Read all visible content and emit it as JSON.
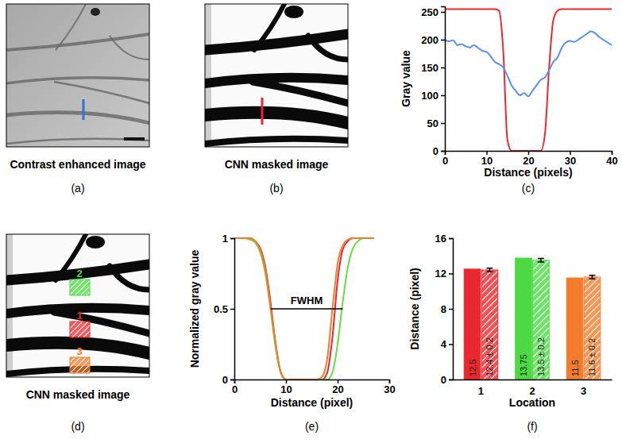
{
  "chart_data": [
    {
      "type": "image",
      "title": "Contrast enhanced image",
      "caption": "(a)",
      "color": "#3b6fd8"
    },
    {
      "type": "image",
      "title": "CNN masked image",
      "caption": "(b)",
      "color": "#e8282c"
    },
    {
      "type": "line",
      "caption": "(c)",
      "x_label": "Distance (pixels)",
      "y_label": "Gray value",
      "x": [
        0,
        1,
        2,
        3,
        4,
        5,
        6,
        7,
        8,
        9,
        10,
        11,
        12,
        13,
        14,
        15,
        16,
        17,
        18,
        19,
        20,
        21,
        22,
        23,
        24,
        25,
        26,
        27,
        28,
        29,
        30,
        31,
        32,
        33,
        34,
        35,
        36,
        37,
        38,
        39,
        40
      ],
      "series": [
        {
          "color": "#f0282d",
          "values": [
            255,
            255,
            255,
            255,
            255,
            255,
            255,
            255,
            255,
            255,
            255,
            255,
            255,
            252,
            180,
            20,
            0,
            0,
            0,
            0,
            0,
            0,
            0,
            0,
            30,
            150,
            235,
            252,
            255,
            255,
            255,
            255,
            255,
            255,
            255,
            255,
            255,
            255,
            255,
            255,
            255
          ]
        },
        {
          "color": "#5b8ff0",
          "values": [
            200,
            197,
            199,
            190,
            192,
            188,
            186,
            190,
            185,
            180,
            178,
            170,
            160,
            156,
            150,
            135,
            118,
            108,
            100,
            104,
            98,
            108,
            118,
            128,
            132,
            145,
            160,
            168,
            185,
            195,
            198,
            196,
            200,
            205,
            210,
            215,
            212,
            205,
            200,
            195,
            190
          ]
        }
      ],
      "xlim": [
        0,
        40
      ],
      "xticks": [
        0,
        10,
        20,
        30,
        40
      ],
      "ylim": [
        0,
        260
      ],
      "yticks": [
        0,
        50,
        100,
        150,
        200,
        250
      ]
    },
    {
      "type": "image",
      "title": "CNN masked image",
      "caption": "(d)",
      "regions": [
        {
          "label": "2",
          "color": "#4cd944"
        },
        {
          "label": "1",
          "color": "#e8282c"
        },
        {
          "label": "3",
          "color": "#f07c2c"
        }
      ]
    },
    {
      "type": "line",
      "caption": "(e)",
      "x_label": "Distance (pixel)",
      "y_label": "Normalized gray value",
      "x": [
        0,
        1,
        2,
        3,
        4,
        5,
        6,
        7,
        8,
        9,
        10,
        11,
        12,
        13,
        14,
        15,
        16,
        17,
        18,
        19,
        20,
        21,
        22,
        23,
        24,
        25,
        26,
        27
      ],
      "series": [
        {
          "color": "#e8282c",
          "values": [
            1,
            1,
            1,
            1,
            0.98,
            0.93,
            0.8,
            0.55,
            0.25,
            0.05,
            0,
            0,
            0,
            0,
            0,
            0,
            0,
            0,
            0.05,
            0.3,
            0.7,
            0.92,
            0.98,
            1,
            1,
            1,
            1,
            1
          ]
        },
        {
          "color": "#66dd44",
          "values": [
            1,
            1,
            1,
            0.99,
            0.97,
            0.9,
            0.75,
            0.5,
            0.22,
            0.05,
            0,
            0,
            0,
            0,
            0,
            0,
            0,
            0,
            0,
            0.05,
            0.25,
            0.55,
            0.8,
            0.93,
            0.98,
            1,
            1,
            1
          ]
        },
        {
          "color": "#f07c2c",
          "values": [
            1,
            1,
            1,
            1,
            0.98,
            0.92,
            0.78,
            0.52,
            0.25,
            0.05,
            0,
            0,
            0,
            0,
            0,
            0,
            0,
            0.02,
            0.15,
            0.5,
            0.82,
            0.95,
            0.99,
            1,
            1,
            1,
            1,
            1
          ]
        }
      ],
      "annotations": [
        {
          "text": "FWHM",
          "x": [
            7,
            21
          ],
          "y": 0.5
        }
      ],
      "xlim": [
        0,
        30
      ],
      "xticks": [
        0,
        10,
        20,
        30
      ],
      "ylim": [
        0,
        1
      ],
      "yticks": [
        0,
        0.5,
        1
      ]
    },
    {
      "type": "bar",
      "caption": "(f)",
      "x_label": "Location",
      "y_label": "Distance (pixel)",
      "categories": [
        "1",
        "2",
        "3"
      ],
      "colors": [
        "#e8282c",
        "#4cd944",
        "#f07c2c"
      ],
      "data_labels": true,
      "series": [
        {
          "values": [
            12.5,
            13.75,
            11.5
          ]
        },
        {
          "values": [
            12.4,
            13.5,
            11.6
          ],
          "errors": [
            0.2,
            0.2,
            0.2
          ],
          "value_labels": [
            "12.4 ± 0.2",
            "13.5 ± 0.2",
            "11.6 ± 0.2"
          ]
        }
      ],
      "ylim": [
        0,
        16
      ],
      "yticks": [
        0,
        4,
        8,
        12,
        16
      ]
    }
  ]
}
